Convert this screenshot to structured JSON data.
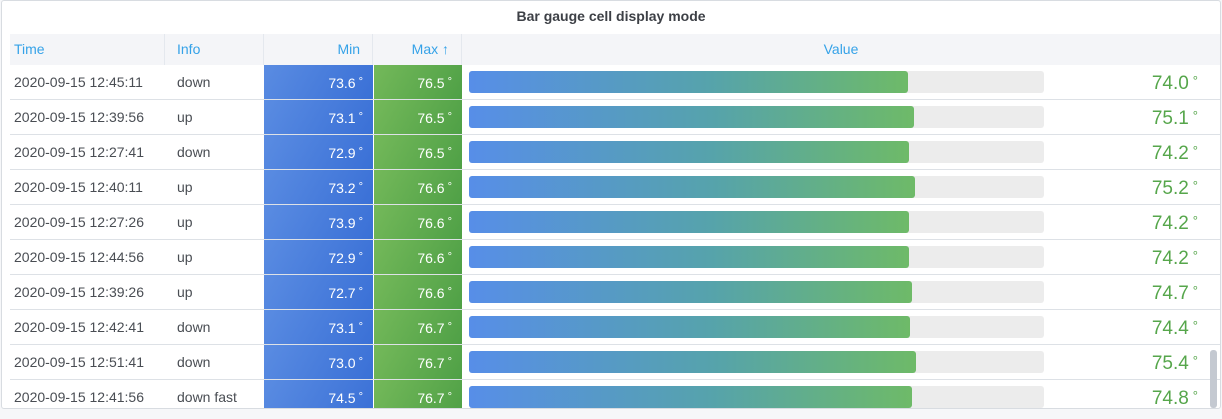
{
  "panel": {
    "title": "Bar gauge cell display mode"
  },
  "table": {
    "columns": [
      {
        "key": "time",
        "label": "Time"
      },
      {
        "key": "info",
        "label": "Info"
      },
      {
        "key": "min",
        "label": "Min"
      },
      {
        "key": "max",
        "label": "Max",
        "sorted": "ascending",
        "sort_icon": "↑"
      },
      {
        "key": "value",
        "label": "Value"
      }
    ],
    "unit_suffix": "°",
    "rows": [
      {
        "time": "2020-09-15 12:45:11",
        "info": "down",
        "min": "73.6",
        "max": "76.5",
        "value": "74.0"
      },
      {
        "time": "2020-09-15 12:39:56",
        "info": "up",
        "min": "73.1",
        "max": "76.5",
        "value": "75.1"
      },
      {
        "time": "2020-09-15 12:27:41",
        "info": "down",
        "min": "72.9",
        "max": "76.5",
        "value": "74.2"
      },
      {
        "time": "2020-09-15 12:40:11",
        "info": "up",
        "min": "73.2",
        "max": "76.6",
        "value": "75.2"
      },
      {
        "time": "2020-09-15 12:27:26",
        "info": "up",
        "min": "73.9",
        "max": "76.6",
        "value": "74.2"
      },
      {
        "time": "2020-09-15 12:44:56",
        "info": "up",
        "min": "72.9",
        "max": "76.6",
        "value": "74.2"
      },
      {
        "time": "2020-09-15 12:39:26",
        "info": "up",
        "min": "72.7",
        "max": "76.6",
        "value": "74.7"
      },
      {
        "time": "2020-09-15 12:42:41",
        "info": "down",
        "min": "73.1",
        "max": "76.7",
        "value": "74.4"
      },
      {
        "time": "2020-09-15 12:51:41",
        "info": "down",
        "min": "73.0",
        "max": "76.7",
        "value": "75.4"
      },
      {
        "time": "2020-09-15 12:41:56",
        "info": "down fast",
        "min": "74.5",
        "max": "76.7",
        "value": "74.8"
      }
    ]
  },
  "gauge": {
    "scale_min": 0,
    "scale_max": 97
  },
  "colors": {
    "page_bg": "#f6f7f9",
    "panel_bg": "#ffffff",
    "panel_border": "#d8dce1",
    "title_text": "#3d4046",
    "header_bg": "#f4f5f8",
    "header_text": "#35a2e8",
    "header_sep": "#e4e8ee",
    "row_border": "#dde1e6",
    "body_text": "#494d53",
    "min_cell": "#3a70d6",
    "min_cell_light": "#5a8ce2",
    "max_cell": "#4fa046",
    "max_cell_light": "#74b95a",
    "track": "#ececec",
    "bar_start": "#578ee8",
    "bar_mid": "#56a3ab",
    "bar_end": "#6eba68",
    "value_text": "#56a64b",
    "scrollbar": "#c4c9d1"
  }
}
